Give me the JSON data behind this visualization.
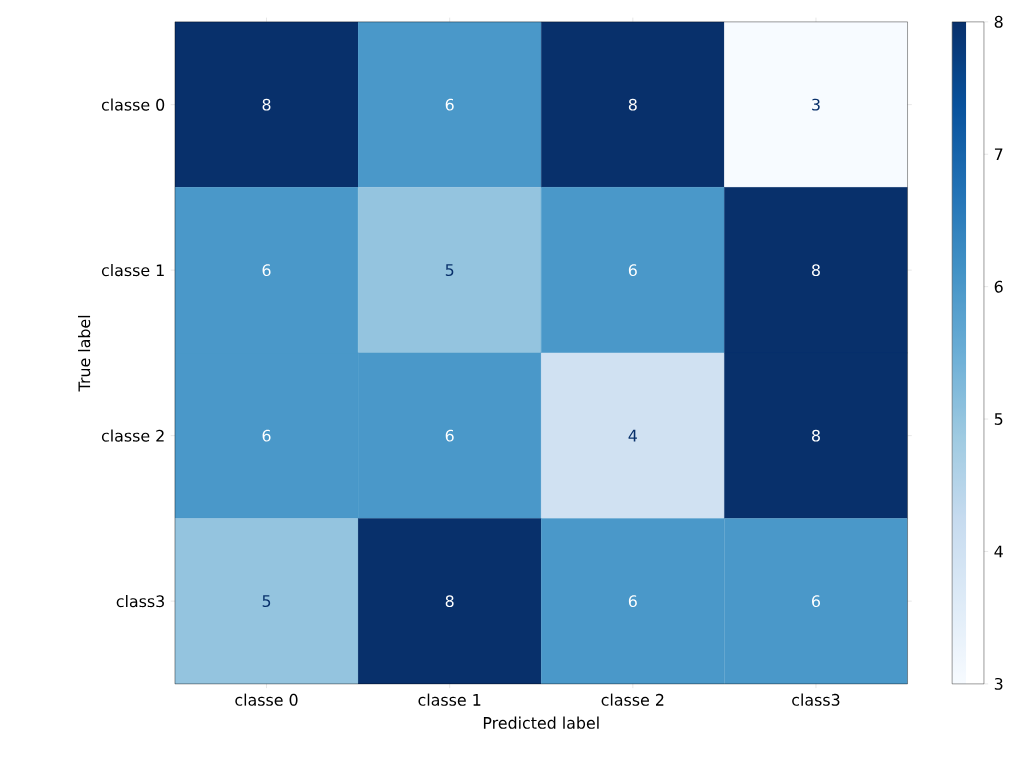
{
  "chart_data": {
    "type": "heatmap",
    "xlabel": "Predicted label",
    "ylabel": "True label",
    "categories": [
      "classe 0",
      "classe 1",
      "classe 2",
      "class3"
    ],
    "y_categories": [
      "classe 0",
      "classe 1",
      "classe 2",
      "class3"
    ],
    "cells": [
      [
        8,
        6,
        8,
        3
      ],
      [
        6,
        5,
        6,
        8
      ],
      [
        6,
        6,
        4,
        8
      ],
      [
        5,
        8,
        6,
        6
      ]
    ],
    "data_labels": true,
    "clim": [
      3,
      8
    ],
    "cticks": [
      3,
      4,
      5,
      6,
      7,
      8
    ]
  }
}
